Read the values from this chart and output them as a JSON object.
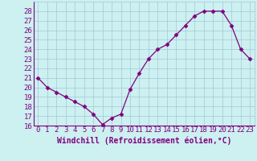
{
  "x": [
    0,
    1,
    2,
    3,
    4,
    5,
    6,
    7,
    8,
    9,
    10,
    11,
    12,
    13,
    14,
    15,
    16,
    17,
    18,
    19,
    20,
    21,
    22,
    23
  ],
  "y": [
    21.0,
    20.0,
    19.5,
    19.0,
    18.5,
    18.0,
    17.2,
    16.1,
    16.8,
    17.2,
    19.8,
    21.5,
    23.0,
    24.0,
    24.5,
    25.5,
    26.5,
    27.5,
    28.0,
    28.0,
    28.0,
    26.5,
    24.0,
    23.0
  ],
  "line_color": "#800080",
  "marker": "D",
  "marker_size": 2.5,
  "bg_color": "#cdf0f0",
  "grid_color": "#a0c8d8",
  "xlabel": "Windchill (Refroidissement éolien,°C)",
  "ylim": [
    16,
    29
  ],
  "xlim": [
    -0.5,
    23.5
  ],
  "yticks": [
    16,
    17,
    18,
    19,
    20,
    21,
    22,
    23,
    24,
    25,
    26,
    27,
    28
  ],
  "xticks": [
    0,
    1,
    2,
    3,
    4,
    5,
    6,
    7,
    8,
    9,
    10,
    11,
    12,
    13,
    14,
    15,
    16,
    17,
    18,
    19,
    20,
    21,
    22,
    23
  ],
  "label_color": "#800080",
  "tick_label_color": "#800080",
  "spine_color": "#800080",
  "font_size": 6.5,
  "xlabel_fontsize": 7.0
}
